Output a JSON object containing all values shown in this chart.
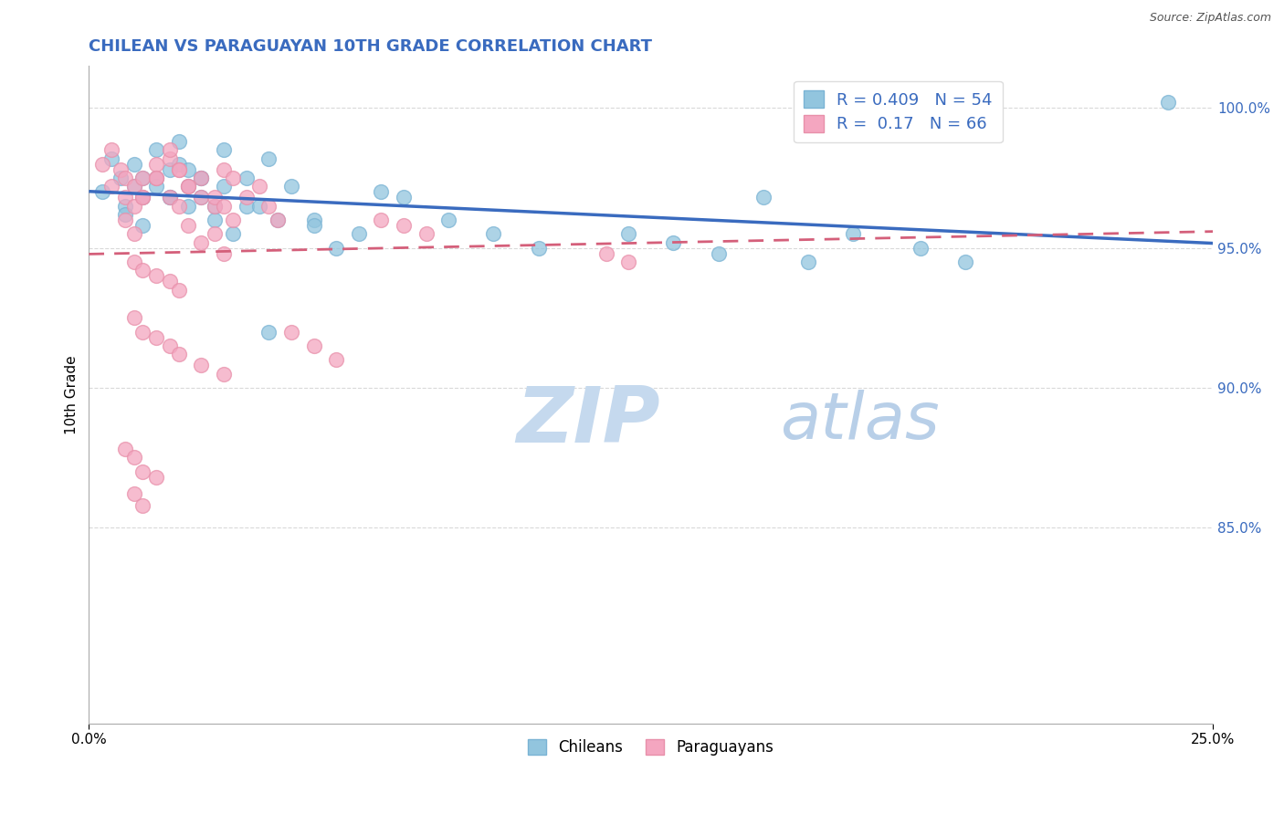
{
  "title": "CHILEAN VS PARAGUAYAN 10TH GRADE CORRELATION CHART",
  "source_text": "Source: ZipAtlas.com",
  "ylabel": "10th Grade",
  "xlim": [
    0.0,
    0.25
  ],
  "ylim": [
    0.78,
    1.015
  ],
  "y_ticks": [
    0.85,
    0.9,
    0.95,
    1.0
  ],
  "y_tick_labels": [
    "85.0%",
    "90.0%",
    "95.0%",
    "100.0%"
  ],
  "chilean_R": 0.409,
  "chilean_N": 54,
  "paraguayan_R": 0.17,
  "paraguayan_N": 66,
  "chilean_color": "#92c5de",
  "paraguayan_color": "#f4a6c0",
  "chilean_edge_color": "#7ab3d4",
  "paraguayan_edge_color": "#e890aa",
  "chilean_line_color": "#3a6bbf",
  "paraguayan_line_color": "#d45f7a",
  "background_color": "#ffffff",
  "grid_color": "#d0d0d0",
  "title_color": "#3a6bbf",
  "watermark_zip_color": "#c5d9ee",
  "watermark_atlas_color": "#b8cfe8",
  "legend_R_color": "#3a6bbf",
  "legend_N_color": "#3a6bbf",
  "chilean_x": [
    0.003,
    0.007,
    0.01,
    0.012,
    0.015,
    0.018,
    0.02,
    0.022,
    0.025,
    0.028,
    0.008,
    0.012,
    0.015,
    0.018,
    0.022,
    0.025,
    0.03,
    0.035,
    0.04,
    0.045,
    0.005,
    0.01,
    0.015,
    0.02,
    0.025,
    0.03,
    0.035,
    0.05,
    0.055,
    0.065,
    0.008,
    0.012,
    0.018,
    0.022,
    0.028,
    0.032,
    0.038,
    0.042,
    0.05,
    0.06,
    0.07,
    0.08,
    0.09,
    0.1,
    0.12,
    0.13,
    0.14,
    0.15,
    0.16,
    0.17,
    0.185,
    0.195,
    0.04,
    0.24
  ],
  "chilean_y": [
    0.97,
    0.975,
    0.972,
    0.968,
    0.975,
    0.978,
    0.98,
    0.972,
    0.968,
    0.965,
    0.965,
    0.975,
    0.972,
    0.968,
    0.978,
    0.975,
    0.985,
    0.975,
    0.982,
    0.972,
    0.982,
    0.98,
    0.985,
    0.988,
    0.975,
    0.972,
    0.965,
    0.96,
    0.95,
    0.97,
    0.962,
    0.958,
    0.968,
    0.965,
    0.96,
    0.955,
    0.965,
    0.96,
    0.958,
    0.955,
    0.968,
    0.96,
    0.955,
    0.95,
    0.955,
    0.952,
    0.948,
    0.968,
    0.945,
    0.955,
    0.95,
    0.945,
    0.92,
    1.002
  ],
  "paraguayan_x": [
    0.003,
    0.005,
    0.007,
    0.008,
    0.01,
    0.012,
    0.015,
    0.018,
    0.02,
    0.022,
    0.025,
    0.028,
    0.03,
    0.032,
    0.005,
    0.008,
    0.01,
    0.012,
    0.015,
    0.018,
    0.02,
    0.022,
    0.025,
    0.028,
    0.03,
    0.032,
    0.035,
    0.038,
    0.04,
    0.042,
    0.008,
    0.01,
    0.012,
    0.015,
    0.018,
    0.02,
    0.022,
    0.025,
    0.028,
    0.03,
    0.01,
    0.012,
    0.015,
    0.018,
    0.02,
    0.01,
    0.012,
    0.015,
    0.018,
    0.02,
    0.025,
    0.03,
    0.008,
    0.01,
    0.012,
    0.015,
    0.01,
    0.012,
    0.045,
    0.05,
    0.055,
    0.115,
    0.12,
    0.065,
    0.07,
    0.075
  ],
  "paraguayan_y": [
    0.98,
    0.985,
    0.978,
    0.975,
    0.972,
    0.968,
    0.975,
    0.982,
    0.978,
    0.972,
    0.968,
    0.965,
    0.978,
    0.975,
    0.972,
    0.968,
    0.965,
    0.975,
    0.98,
    0.985,
    0.978,
    0.972,
    0.975,
    0.968,
    0.965,
    0.96,
    0.968,
    0.972,
    0.965,
    0.96,
    0.96,
    0.955,
    0.968,
    0.975,
    0.968,
    0.965,
    0.958,
    0.952,
    0.955,
    0.948,
    0.945,
    0.942,
    0.94,
    0.938,
    0.935,
    0.925,
    0.92,
    0.918,
    0.915,
    0.912,
    0.908,
    0.905,
    0.878,
    0.875,
    0.87,
    0.868,
    0.862,
    0.858,
    0.92,
    0.915,
    0.91,
    0.948,
    0.945,
    0.96,
    0.958,
    0.955
  ]
}
